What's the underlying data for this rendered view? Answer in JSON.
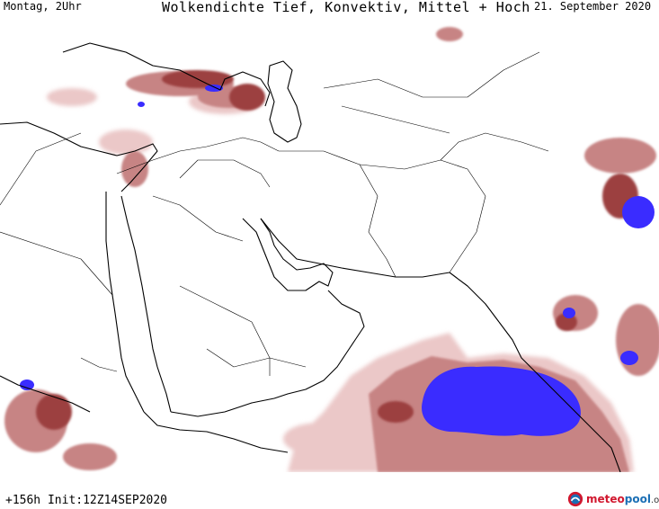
{
  "header": {
    "left": "Montag, 2Uhr",
    "center": "Wolkendichte  Tief, Konvektiv, Mittel + Hoch",
    "right": "21. September 2020"
  },
  "footer": {
    "run_info": "+156h  Init:12Z14SEP2020",
    "brand": {
      "meteo": "meteo",
      "pool": "pool",
      "tld": ".org"
    }
  },
  "colors": {
    "cloud_low": "#e9c3c3",
    "cloud_mid": "#c98a8a",
    "cloud_high": "#a24a4a",
    "cloud_max": "#3a2aff",
    "borders": "#000000",
    "brand_red": "#d1172e",
    "brand_blue": "#1b6fb5"
  }
}
